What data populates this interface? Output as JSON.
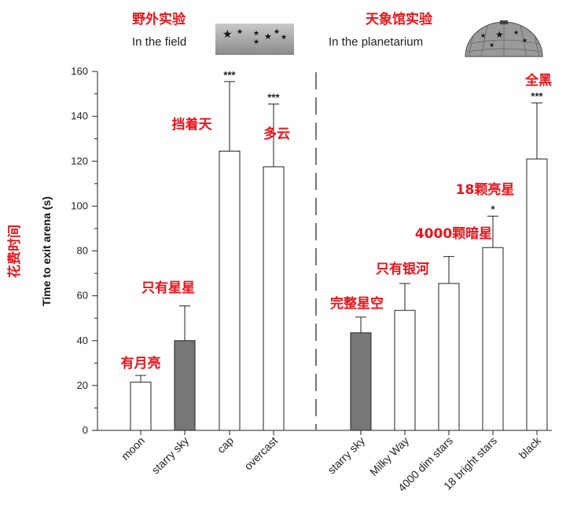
{
  "header": {
    "field_cn": "野外实验",
    "field_en": "In the field",
    "planetarium_cn": "天象馆实验",
    "planetarium_en": "In the planetarium"
  },
  "y_note_cn": "花费时间",
  "colors": {
    "annotation": "#e8141b",
    "filled_bar": "#777777",
    "open_bar": "#ffffff",
    "axis": "#222222"
  },
  "chart_data": {
    "type": "bar",
    "ylabel": "Time to exit arena (s)",
    "ylim": [
      0,
      160
    ],
    "yticks": [
      0,
      20,
      40,
      60,
      80,
      100,
      120,
      140,
      160
    ],
    "grid": false,
    "groups": [
      "field",
      "planetarium"
    ],
    "categories": [
      "moon",
      "starry sky",
      "cap",
      "overcast",
      "starry sky",
      "Milky Way",
      "4000 dim stars",
      "18 bright stars",
      "black"
    ],
    "values": [
      21.5,
      40,
      124.5,
      117.5,
      43.5,
      53.5,
      65.5,
      81.5,
      121
    ],
    "errors": [
      3,
      15.5,
      31,
      28,
      7,
      12,
      12,
      14,
      25
    ],
    "group_of": [
      "field",
      "field",
      "field",
      "field",
      "planetarium",
      "planetarium",
      "planetarium",
      "planetarium",
      "planetarium"
    ],
    "fill": [
      "open",
      "dark",
      "open",
      "open",
      "dark",
      "open",
      "open",
      "open",
      "open"
    ],
    "significance": [
      "",
      "",
      "***",
      "***",
      "",
      "",
      "",
      "*",
      "***"
    ],
    "annotations_cn": [
      "有月亮",
      "只有星星",
      "挡着天",
      "多云",
      "完整星空",
      "只有银河",
      "4000颗暗星",
      "18颗亮星",
      "全黑"
    ]
  }
}
